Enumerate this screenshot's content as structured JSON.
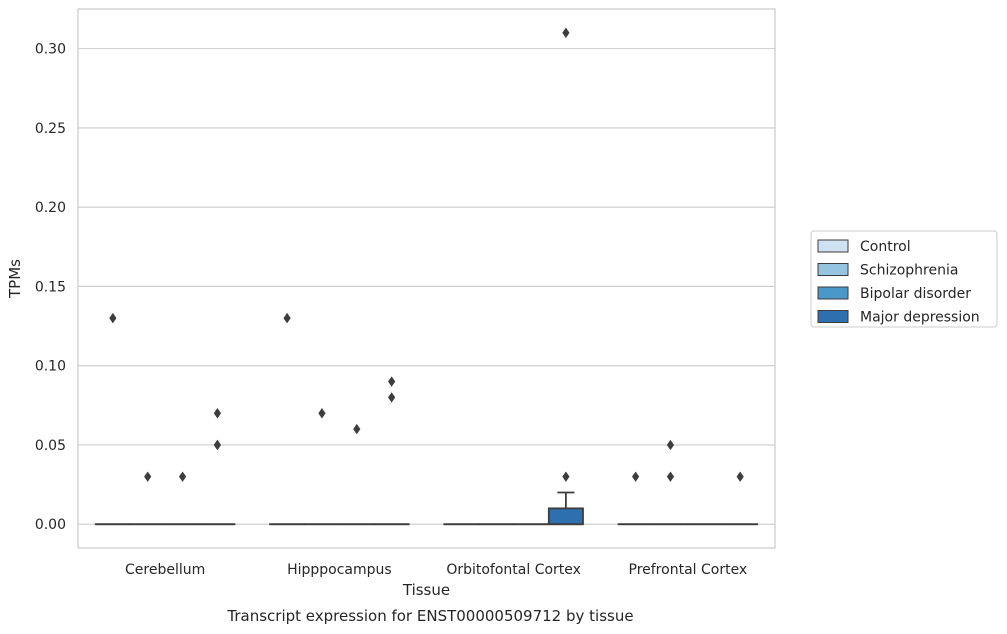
{
  "chart_data": {
    "type": "box",
    "title": "",
    "caption": "Transcript expression for ENST00000509712 by tissue",
    "xlabel": "Tissue",
    "ylabel": "TPMs",
    "ylim": [
      -0.015,
      0.325
    ],
    "yticks": [
      "0.00",
      "0.05",
      "0.10",
      "0.15",
      "0.20",
      "0.25",
      "0.30"
    ],
    "grid": "horizontal",
    "legend_position": "right",
    "categories": [
      "Cerebellum",
      "Hipppocampus",
      "Orbitofontal Cortex",
      "Prefrontal Cortex"
    ],
    "series": [
      {
        "name": "Control",
        "color": "#d0e1f2",
        "boxes": [
          {
            "q1": 0,
            "median": 0,
            "q3": 0,
            "whisker_low": 0,
            "whisker_high": 0,
            "outliers": [
              0.13
            ]
          },
          {
            "q1": 0,
            "median": 0,
            "q3": 0,
            "whisker_low": 0,
            "whisker_high": 0,
            "outliers": [
              0.13
            ]
          },
          {
            "q1": 0,
            "median": 0,
            "q3": 0,
            "whisker_low": 0,
            "whisker_high": 0,
            "outliers": []
          },
          {
            "q1": 0,
            "median": 0,
            "q3": 0,
            "whisker_low": 0,
            "whisker_high": 0,
            "outliers": [
              0.03
            ]
          }
        ]
      },
      {
        "name": "Schizophrenia",
        "color": "#94c4df",
        "boxes": [
          {
            "q1": 0,
            "median": 0,
            "q3": 0,
            "whisker_low": 0,
            "whisker_high": 0,
            "outliers": [
              0.03
            ]
          },
          {
            "q1": 0,
            "median": 0,
            "q3": 0,
            "whisker_low": 0,
            "whisker_high": 0,
            "outliers": [
              0.07
            ]
          },
          {
            "q1": 0,
            "median": 0,
            "q3": 0,
            "whisker_low": 0,
            "whisker_high": 0,
            "outliers": []
          },
          {
            "q1": 0,
            "median": 0,
            "q3": 0,
            "whisker_low": 0,
            "whisker_high": 0,
            "outliers": [
              0.05,
              0.03
            ]
          }
        ]
      },
      {
        "name": "Bipolar disorder",
        "color": "#4a98c9",
        "boxes": [
          {
            "q1": 0,
            "median": 0,
            "q3": 0,
            "whisker_low": 0,
            "whisker_high": 0,
            "outliers": [
              0.03
            ]
          },
          {
            "q1": 0,
            "median": 0,
            "q3": 0,
            "whisker_low": 0,
            "whisker_high": 0,
            "outliers": [
              0.06
            ]
          },
          {
            "q1": 0,
            "median": 0,
            "q3": 0,
            "whisker_low": 0,
            "whisker_high": 0,
            "outliers": []
          },
          {
            "q1": 0,
            "median": 0,
            "q3": 0,
            "whisker_low": 0,
            "whisker_high": 0,
            "outliers": []
          }
        ]
      },
      {
        "name": "Major depression",
        "color": "#2e6fb0",
        "boxes": [
          {
            "q1": 0,
            "median": 0,
            "q3": 0,
            "whisker_low": 0,
            "whisker_high": 0,
            "outliers": [
              0.07,
              0.05,
              0.05
            ]
          },
          {
            "q1": 0,
            "median": 0,
            "q3": 0,
            "whisker_low": 0,
            "whisker_high": 0,
            "outliers": [
              0.09,
              0.08
            ]
          },
          {
            "q1": 0,
            "median": 0,
            "q3": 0.01,
            "whisker_low": 0,
            "whisker_high": 0.02,
            "outliers": [
              0.31,
              0.03
            ]
          },
          {
            "q1": 0,
            "median": 0,
            "q3": 0,
            "whisker_low": 0,
            "whisker_high": 0,
            "outliers": [
              0.03
            ]
          }
        ]
      }
    ]
  }
}
